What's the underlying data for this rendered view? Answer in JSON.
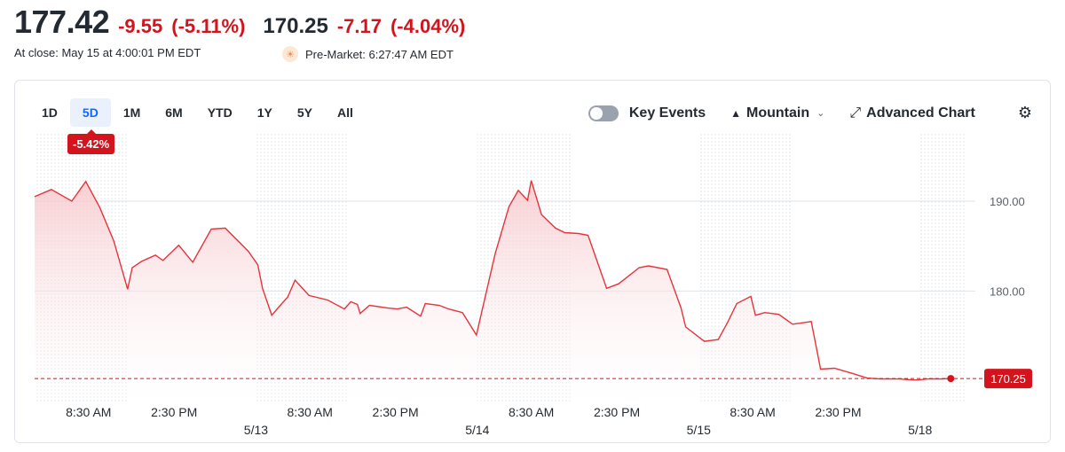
{
  "quote": {
    "price": "177.42",
    "change": "-9.55",
    "change_pct": "(-5.11%)",
    "premarket_price": "170.25",
    "premarket_change": "-7.17",
    "premarket_change_pct": "(-4.04%)",
    "close_label": "At close: May 15 at 4:00:01 PM EDT",
    "premarket_label": "Pre-Market: 6:27:47 AM EDT",
    "negative_color": "#d3141d"
  },
  "toolbar": {
    "ranges": [
      "1D",
      "5D",
      "1M",
      "6M",
      "YTD",
      "1Y",
      "5Y",
      "All"
    ],
    "active_range": "5D",
    "key_events": "Key Events",
    "chart_style": "Mountain",
    "advanced": "Advanced Chart",
    "icons": {
      "style": "mountain-icon",
      "dropdown": "chevron-down-icon",
      "advanced": "expand-icon",
      "settings": "gear-icon"
    }
  },
  "chart_data": {
    "type": "area",
    "period_change": "-5.42%",
    "reference_value": 170.25,
    "reference_label": "170.25",
    "ylim": [
      167.5,
      197.5
    ],
    "y_ticks": [
      190,
      180
    ],
    "y_tick_labels": [
      "190.00",
      "180.00"
    ],
    "x_ticks": [
      {
        "label": "8:30 AM",
        "x": 0.58
      },
      {
        "label": "2:30 PM",
        "x": 1.5
      },
      {
        "label": "5/13",
        "x": 2.38
      },
      {
        "label": "8:30 AM",
        "x": 2.96
      },
      {
        "label": "2:30 PM",
        "x": 3.88
      },
      {
        "label": "5/14",
        "x": 4.76
      },
      {
        "label": "8:30 AM",
        "x": 5.34
      },
      {
        "label": "2:30 PM",
        "x": 6.26
      },
      {
        "label": "5/15",
        "x": 7.14
      },
      {
        "label": "8:30 AM",
        "x": 7.72
      },
      {
        "label": "2:30 PM",
        "x": 8.64
      },
      {
        "label": "5/18",
        "x": 9.52
      }
    ],
    "series": [
      {
        "x": [
          0.0,
          0.18,
          0.4,
          0.55,
          0.7,
          0.85,
          1.0,
          1.05,
          1.15,
          1.3,
          1.38,
          1.47,
          1.55,
          1.7,
          1.9,
          2.05,
          2.3,
          2.4,
          2.45,
          2.55,
          2.65,
          2.72,
          2.8,
          2.95,
          3.15,
          3.33,
          3.4,
          3.47,
          3.5,
          3.6,
          3.8,
          3.9,
          4.0,
          4.15,
          4.2,
          4.35,
          4.45,
          4.6,
          4.75,
          4.95,
          5.1,
          5.2,
          5.3,
          5.34,
          5.45,
          5.6,
          5.7,
          5.85,
          5.95,
          6.15,
          6.28,
          6.5,
          6.6,
          6.8,
          6.95,
          7.0,
          7.2,
          7.35,
          7.45,
          7.55,
          7.7,
          7.75,
          7.85,
          8.0,
          8.15,
          8.35,
          8.45,
          8.6,
          8.8,
          8.95,
          9.1,
          9.3,
          9.45,
          9.5,
          9.6,
          9.75,
          9.85
        ],
        "y": [
          190.5,
          191.3,
          190.0,
          192.2,
          189.3,
          185.6,
          180.2,
          182.6,
          183.3,
          184.0,
          183.4,
          184.3,
          185.1,
          183.2,
          186.9,
          187.0,
          184.4,
          182.9,
          180.3,
          177.3,
          178.5,
          179.3,
          181.2,
          179.5,
          179.0,
          178.0,
          178.8,
          178.5,
          177.5,
          178.4,
          178.1,
          178.0,
          178.2,
          177.2,
          178.6,
          178.4,
          178.0,
          177.6,
          175.1,
          184.1,
          189.4,
          191.2,
          190.1,
          192.3,
          188.5,
          187.0,
          186.5,
          186.4,
          186.2,
          180.3,
          180.8,
          182.6,
          182.8,
          182.4,
          178.1,
          176.0,
          174.4,
          174.6,
          176.5,
          178.6,
          179.4,
          177.3,
          177.6,
          177.4,
          176.3,
          176.6,
          171.3,
          171.4,
          170.8,
          170.3,
          170.2,
          170.2,
          170.1,
          170.1,
          170.2,
          170.2,
          170.25
        ],
        "color": "#e5343c"
      }
    ]
  }
}
